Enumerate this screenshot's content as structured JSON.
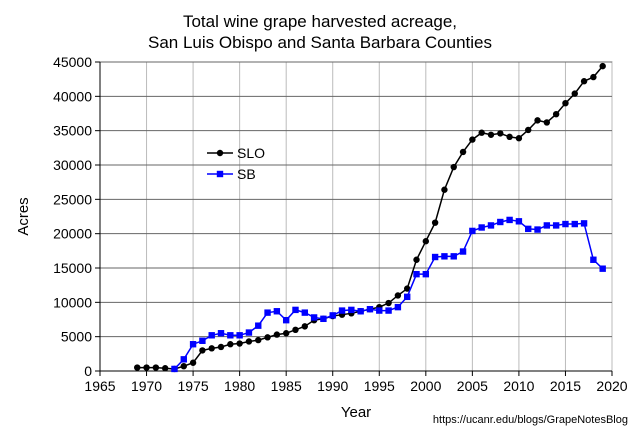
{
  "chart_data": {
    "type": "line",
    "title": [
      "Total wine grape harvested acreage,",
      "San Luis Obispo and Santa Barbara Counties"
    ],
    "xlabel": "Year",
    "ylabel": "Acres",
    "xlim": [
      1965,
      2020
    ],
    "ylim": [
      0,
      45000
    ],
    "xticks": [
      1965,
      1970,
      1975,
      1980,
      1985,
      1990,
      1995,
      2000,
      2005,
      2010,
      2015,
      2020
    ],
    "yticks": [
      0,
      5000,
      10000,
      15000,
      20000,
      25000,
      30000,
      35000,
      40000,
      45000
    ],
    "grid": true,
    "legend_position": "upper-left",
    "series": [
      {
        "name": "SLO",
        "color": "#000000",
        "marker": "circle",
        "x": [
          1969,
          1970,
          1971,
          1972,
          1973,
          1974,
          1975,
          1976,
          1977,
          1978,
          1979,
          1980,
          1981,
          1982,
          1983,
          1984,
          1985,
          1986,
          1987,
          1988,
          1989,
          1990,
          1991,
          1992,
          1993,
          1994,
          1995,
          1996,
          1997,
          1998,
          1999,
          2000,
          2001,
          2002,
          2003,
          2004,
          2005,
          2006,
          2007,
          2008,
          2009,
          2010,
          2011,
          2012,
          2013,
          2014,
          2015,
          2016,
          2017,
          2018,
          2019
        ],
        "y": [
          500,
          500,
          500,
          400,
          300,
          700,
          1200,
          3000,
          3300,
          3500,
          3900,
          4000,
          4300,
          4500,
          4900,
          5300,
          5500,
          6000,
          6500,
          7400,
          7600,
          8000,
          8200,
          8400,
          8700,
          9000,
          9300,
          9900,
          11000,
          12000,
          16200,
          18900,
          21600,
          26400,
          29700,
          31900,
          33700,
          34700,
          34400,
          34600,
          34100,
          33900,
          35100,
          36500,
          36200,
          37400,
          39000,
          40400,
          42200,
          42800,
          44400
        ]
      },
      {
        "name": "SB",
        "color": "#0000ff",
        "marker": "square",
        "x": [
          1973,
          1974,
          1975,
          1976,
          1977,
          1978,
          1979,
          1980,
          1981,
          1982,
          1983,
          1984,
          1985,
          1986,
          1987,
          1988,
          1989,
          1990,
          1991,
          1992,
          1993,
          1994,
          1995,
          1996,
          1997,
          1998,
          1999,
          2000,
          2001,
          2002,
          2003,
          2004,
          2005,
          2006,
          2007,
          2008,
          2009,
          2010,
          2011,
          2012,
          2013,
          2014,
          2015,
          2016,
          2017,
          2018,
          2019
        ],
        "y": [
          300,
          1700,
          3900,
          4400,
          5200,
          5500,
          5200,
          5200,
          5600,
          6600,
          8500,
          8700,
          7400,
          8900,
          8500,
          7800,
          7600,
          8100,
          8800,
          8900,
          8700,
          9000,
          8800,
          8800,
          9300,
          10800,
          14100,
          14100,
          16600,
          16700,
          16700,
          17400,
          20400,
          20900,
          21200,
          21700,
          22000,
          21800,
          20700,
          20600,
          21200,
          21200,
          21400,
          21400,
          21500,
          16200,
          14900
        ]
      }
    ],
    "source_note": "https://ucanr.edu/blogs/GrapeNotesBlog"
  }
}
